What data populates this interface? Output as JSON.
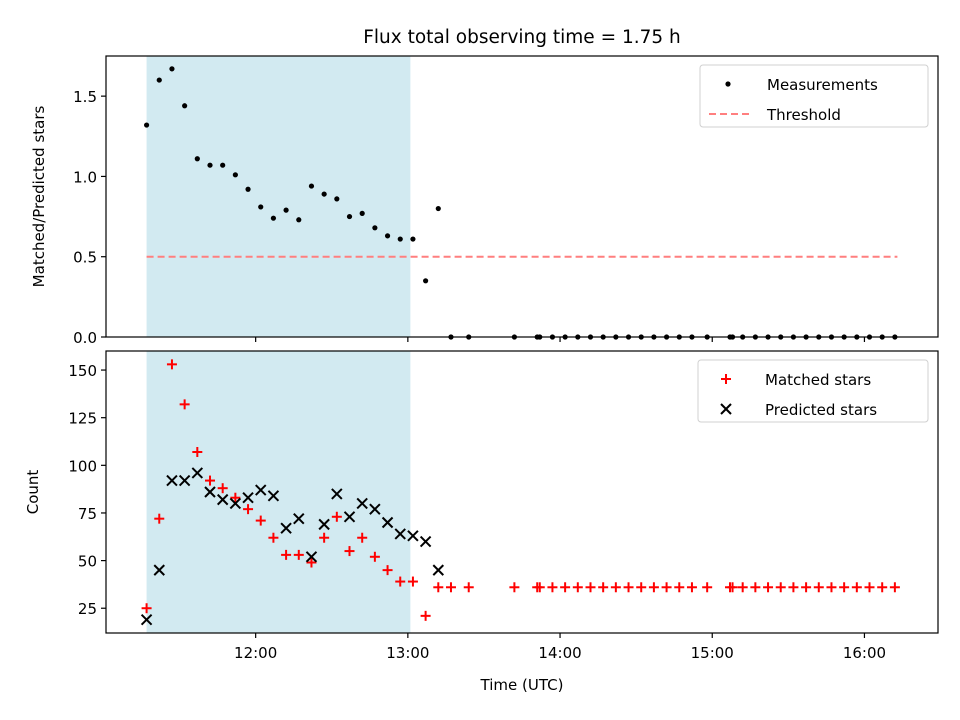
{
  "title": "Flux total observing time = 1.75 h",
  "xlabel": "Time (UTC)",
  "xticks": [
    {
      "label": "12:00",
      "hour": 12.0
    },
    {
      "label": "13:00",
      "hour": 13.0
    },
    {
      "label": "14:00",
      "hour": 14.0
    },
    {
      "label": "15:00",
      "hour": 15.0
    },
    {
      "label": "16:00",
      "hour": 16.0
    }
  ],
  "chart_data": [
    {
      "type": "scatter",
      "ylabel": "Matched/Predicted stars",
      "xlim": [
        "11:01",
        "16:29"
      ],
      "ylim": [
        0,
        1.75
      ],
      "yticks": [
        "0.0",
        "0.5",
        "1.0",
        "1.5"
      ],
      "shaded_span": [
        "11:17",
        "13:01"
      ],
      "shade_color": "#add8e6",
      "legend_location": "upper right",
      "legend": [
        "Measurements",
        "Threshold"
      ],
      "threshold": {
        "value": 0.5,
        "x_range": [
          "11:17",
          "16:13"
        ],
        "color": "#ff7f7f",
        "style": "dashed"
      },
      "series": [
        {
          "name": "Measurements",
          "color": "#000000",
          "marker": "dot",
          "points": [
            [
              "11:17",
              1.32
            ],
            [
              "11:22",
              1.6
            ],
            [
              "11:27",
              1.67
            ],
            [
              "11:32",
              1.44
            ],
            [
              "11:37",
              1.11
            ],
            [
              "11:42",
              1.07
            ],
            [
              "11:47",
              1.07
            ],
            [
              "11:52",
              1.01
            ],
            [
              "11:57",
              0.92
            ],
            [
              "12:02",
              0.81
            ],
            [
              "12:07",
              0.74
            ],
            [
              "12:12",
              0.79
            ],
            [
              "12:17",
              0.73
            ],
            [
              "12:22",
              0.94
            ],
            [
              "12:27",
              0.89
            ],
            [
              "12:32",
              0.86
            ],
            [
              "12:37",
              0.75
            ],
            [
              "12:42",
              0.77
            ],
            [
              "12:47",
              0.68
            ],
            [
              "12:52",
              0.63
            ],
            [
              "12:57",
              0.61
            ],
            [
              "13:02",
              0.61
            ],
            [
              "13:07",
              0.35
            ],
            [
              "13:12",
              0.8
            ],
            [
              "13:17",
              0.0
            ],
            [
              "13:24",
              0.0
            ],
            [
              "13:42",
              0.0
            ],
            [
              "13:51",
              0.0
            ],
            [
              "13:52",
              0.0
            ],
            [
              "13:57",
              0.0
            ],
            [
              "14:02",
              0.0
            ],
            [
              "14:07",
              0.0
            ],
            [
              "14:12",
              0.0
            ],
            [
              "14:17",
              0.0
            ],
            [
              "14:22",
              0.0
            ],
            [
              "14:27",
              0.0
            ],
            [
              "14:32",
              0.0
            ],
            [
              "14:37",
              0.0
            ],
            [
              "14:42",
              0.0
            ],
            [
              "14:47",
              0.0
            ],
            [
              "14:52",
              0.0
            ],
            [
              "14:58",
              0.0
            ],
            [
              "15:07",
              0.0
            ],
            [
              "15:08",
              0.0
            ],
            [
              "15:12",
              0.0
            ],
            [
              "15:17",
              0.0
            ],
            [
              "15:22",
              0.0
            ],
            [
              "15:27",
              0.0
            ],
            [
              "15:32",
              0.0
            ],
            [
              "15:37",
              0.0
            ],
            [
              "15:42",
              0.0
            ],
            [
              "15:47",
              0.0
            ],
            [
              "15:52",
              0.0
            ],
            [
              "15:57",
              0.0
            ],
            [
              "16:02",
              0.0
            ],
            [
              "16:07",
              0.0
            ],
            [
              "16:12",
              0.0
            ]
          ]
        }
      ]
    },
    {
      "type": "scatter",
      "ylabel": "Count",
      "xlabel": "Time (UTC)",
      "xlim": [
        "11:01",
        "16:29"
      ],
      "ylim": [
        12,
        160
      ],
      "yticks": [
        "25",
        "50",
        "75",
        "100",
        "125",
        "150"
      ],
      "shaded_span": [
        "11:17",
        "13:01"
      ],
      "shade_color": "#add8e6",
      "legend_location": "upper right",
      "legend": [
        "Matched stars",
        "Predicted stars"
      ],
      "series": [
        {
          "name": "Matched stars",
          "color": "#ff0000",
          "marker": "plus",
          "points": [
            [
              "11:17",
              25
            ],
            [
              "11:22",
              72
            ],
            [
              "11:27",
              153
            ],
            [
              "11:32",
              132
            ],
            [
              "11:37",
              107
            ],
            [
              "11:42",
              92
            ],
            [
              "11:47",
              88
            ],
            [
              "11:52",
              83
            ],
            [
              "11:57",
              77
            ],
            [
              "12:02",
              71
            ],
            [
              "12:07",
              62
            ],
            [
              "12:12",
              53
            ],
            [
              "12:17",
              53
            ],
            [
              "12:22",
              49
            ],
            [
              "12:27",
              62
            ],
            [
              "12:32",
              73
            ],
            [
              "12:37",
              55
            ],
            [
              "12:42",
              62
            ],
            [
              "12:47",
              52
            ],
            [
              "12:52",
              45
            ],
            [
              "12:57",
              39
            ],
            [
              "13:02",
              39
            ],
            [
              "13:07",
              21
            ],
            [
              "13:12",
              36
            ],
            [
              "13:17",
              36
            ],
            [
              "13:24",
              36
            ],
            [
              "13:42",
              36
            ],
            [
              "13:51",
              36
            ],
            [
              "13:52",
              36
            ],
            [
              "13:57",
              36
            ],
            [
              "14:02",
              36
            ],
            [
              "14:07",
              36
            ],
            [
              "14:12",
              36
            ],
            [
              "14:17",
              36
            ],
            [
              "14:22",
              36
            ],
            [
              "14:27",
              36
            ],
            [
              "14:32",
              36
            ],
            [
              "14:37",
              36
            ],
            [
              "14:42",
              36
            ],
            [
              "14:47",
              36
            ],
            [
              "14:52",
              36
            ],
            [
              "14:58",
              36
            ],
            [
              "15:07",
              36
            ],
            [
              "15:08",
              36
            ],
            [
              "15:12",
              36
            ],
            [
              "15:17",
              36
            ],
            [
              "15:22",
              36
            ],
            [
              "15:27",
              36
            ],
            [
              "15:32",
              36
            ],
            [
              "15:37",
              36
            ],
            [
              "15:42",
              36
            ],
            [
              "15:47",
              36
            ],
            [
              "15:52",
              36
            ],
            [
              "15:57",
              36
            ],
            [
              "16:02",
              36
            ],
            [
              "16:07",
              36
            ],
            [
              "16:12",
              36
            ]
          ]
        },
        {
          "name": "Predicted stars",
          "color": "#000000",
          "marker": "x",
          "points": [
            [
              "11:17",
              19
            ],
            [
              "11:22",
              45
            ],
            [
              "11:27",
              92
            ],
            [
              "11:32",
              92
            ],
            [
              "11:37",
              96
            ],
            [
              "11:42",
              86
            ],
            [
              "11:47",
              82
            ],
            [
              "11:52",
              80
            ],
            [
              "11:57",
              83
            ],
            [
              "12:02",
              87
            ],
            [
              "12:07",
              84
            ],
            [
              "12:12",
              67
            ],
            [
              "12:17",
              72
            ],
            [
              "12:22",
              52
            ],
            [
              "12:27",
              69
            ],
            [
              "12:32",
              85
            ],
            [
              "12:37",
              73
            ],
            [
              "12:42",
              80
            ],
            [
              "12:47",
              77
            ],
            [
              "12:52",
              70
            ],
            [
              "12:57",
              64
            ],
            [
              "13:02",
              63
            ],
            [
              "13:07",
              60
            ],
            [
              "13:12",
              45
            ]
          ]
        }
      ]
    }
  ]
}
